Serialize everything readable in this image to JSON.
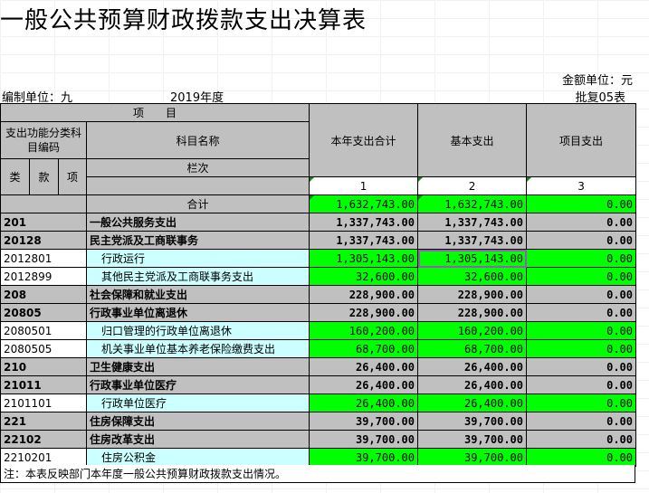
{
  "title": "一般公共预算财政拨款支出决算表",
  "unit_label": "金额单位：元",
  "org_label": "编制单位：九",
  "year_label": "2019年度",
  "report_code": "批复05表",
  "header": {
    "project_group": "项　　目",
    "func_code": "支出功能分类科目编码",
    "subject_name": "科目名称",
    "col_total": "本年支出合计",
    "col_basic": "基本支出",
    "col_project": "项目支出",
    "lei": "类",
    "kuan": "款",
    "xiang": "项",
    "lanci": "栏次",
    "n1": "1",
    "n2": "2",
    "n3": "3"
  },
  "rows": [
    {
      "code": "",
      "name": "合计",
      "total": "1,632,743.00",
      "basic": "1,632,743.00",
      "project": "0.00",
      "style": "sum"
    },
    {
      "code": "201",
      "name": "一般公共服务支出",
      "total": "1,337,743.00",
      "basic": "1,337,743.00",
      "project": "0.00",
      "style": "cat"
    },
    {
      "code": "20128",
      "name": "民主党派及工商联事务",
      "total": "1,337,743.00",
      "basic": "1,337,743.00",
      "project": "0.00",
      "style": "cat"
    },
    {
      "code": "2012801",
      "name": "行政运行",
      "total": "1,305,143.00",
      "basic": "1,305,143.00",
      "project": "0.00",
      "style": "item"
    },
    {
      "code": "2012899",
      "name": "其他民主党派及工商联事务支出",
      "total": "32,600.00",
      "basic": "32,600.00",
      "project": "0.00",
      "style": "item"
    },
    {
      "code": "208",
      "name": "社会保障和就业支出",
      "total": "228,900.00",
      "basic": "228,900.00",
      "project": "0.00",
      "style": "cat"
    },
    {
      "code": "20805",
      "name": "行政事业单位离退休",
      "total": "228,900.00",
      "basic": "228,900.00",
      "project": "0.00",
      "style": "cat"
    },
    {
      "code": "2080501",
      "name": "归口管理的行政单位离退休",
      "total": "160,200.00",
      "basic": "160,200.00",
      "project": "0.00",
      "style": "item"
    },
    {
      "code": "2080505",
      "name": "机关事业单位基本养老保险缴费支出",
      "total": "68,700.00",
      "basic": "68,700.00",
      "project": "0.00",
      "style": "item"
    },
    {
      "code": "210",
      "name": "卫生健康支出",
      "total": "26,400.00",
      "basic": "26,400.00",
      "project": "0.00",
      "style": "cat"
    },
    {
      "code": "21011",
      "name": "行政事业单位医疗",
      "total": "26,400.00",
      "basic": "26,400.00",
      "project": "0.00",
      "style": "cat"
    },
    {
      "code": "2101101",
      "name": "行政单位医疗",
      "total": "26,400.00",
      "basic": "26,400.00",
      "project": "0.00",
      "style": "item"
    },
    {
      "code": "221",
      "name": "住房保障支出",
      "total": "39,700.00",
      "basic": "39,700.00",
      "project": "0.00",
      "style": "cat"
    },
    {
      "code": "22102",
      "name": "住房改革支出",
      "total": "39,700.00",
      "basic": "39,700.00",
      "project": "0.00",
      "style": "cat"
    },
    {
      "code": "2210201",
      "name": "住房公积金",
      "total": "39,700.00",
      "basic": "39,700.00",
      "project": "0.00",
      "style": "item"
    }
  ],
  "note": "注：本表反映部门本年度一般公共预算财政拨款支出情况。",
  "colors": {
    "green": "#00ff00",
    "gray": "#c0c0c0",
    "cyan": "#ccffff"
  }
}
